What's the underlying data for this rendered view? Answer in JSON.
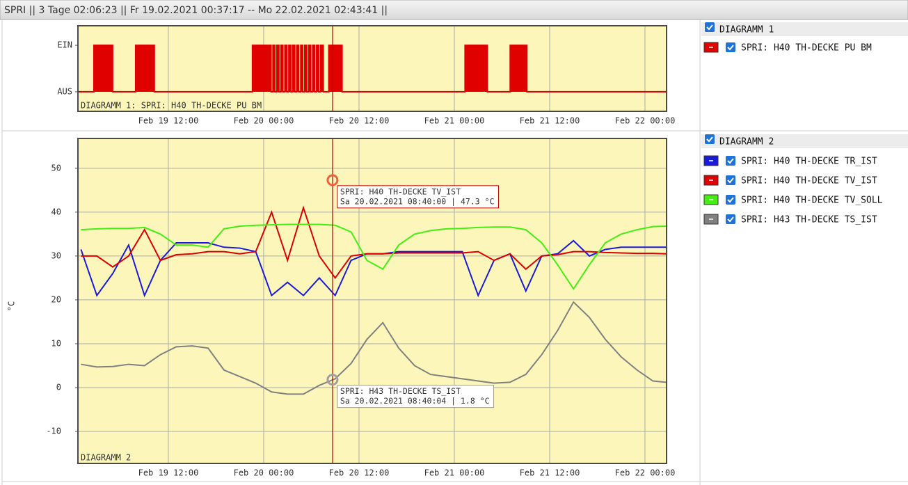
{
  "header": {
    "title": "SPRI || 3 Tage 02:06:23 || Fr 19.02.2021 00:37:17 -- Mo 22.02.2021 02:43:41 ||"
  },
  "chart_data": [
    {
      "type": "step",
      "legend_title": "DIAGRAMM 1",
      "label": "DIAGRAMM 1: SPRI: H40 TH-DECKE PU BM",
      "xlim": [
        "Feb 19 00:37",
        "Feb 22 02:43"
      ],
      "xticks": [
        "Feb 19 12:00",
        "Feb 20 00:00",
        "Feb 20 12:00",
        "Feb 21 00:00",
        "Feb 21 12:00",
        "Feb 22 00:00"
      ],
      "ylim": [
        -0.42,
        1.42
      ],
      "yticks": [
        {
          "value": 1,
          "label": "EIN"
        },
        {
          "value": 0,
          "label": "AUS"
        }
      ],
      "xgrid": true,
      "ygrid": false,
      "cursor": "Feb 20 08:40",
      "x": [
        "Feb 19 00:37",
        "Feb 19 02:38",
        "Feb 19 04:59",
        "Feb 19 07:53",
        "Feb 19 10:14",
        "Feb 19 22:35",
        "Feb 20 00:56",
        "Feb 20 01:10",
        "Feb 20 01:25",
        "Feb 20 01:40",
        "Feb 20 01:55",
        "Feb 20 02:10",
        "Feb 20 02:25",
        "Feb 20 02:40",
        "Feb 20 02:55",
        "Feb 20 03:10",
        "Feb 20 03:25",
        "Feb 20 03:40",
        "Feb 20 03:55",
        "Feb 20 04:10",
        "Feb 20 04:25",
        "Feb 20 04:40",
        "Feb 20 04:55",
        "Feb 20 05:10",
        "Feb 20 05:25",
        "Feb 20 05:40",
        "Feb 20 05:55",
        "Feb 20 06:10",
        "Feb 20 06:25",
        "Feb 20 06:40",
        "Feb 20 06:55",
        "Feb 20 07:10",
        "Feb 20 07:30",
        "Feb 20 08:12",
        "Feb 20 09:52",
        "Feb 21 01:21",
        "Feb 21 04:09",
        "Feb 21 07:02",
        "Feb 21 09:08",
        "Feb 22 02:43"
      ],
      "series": [
        {
          "name": "SPRI: H40 TH-DECKE PU BM",
          "color": "#e00000",
          "values": [
            0,
            1,
            0,
            1,
            0,
            1,
            0,
            1,
            0,
            1,
            0,
            1,
            0,
            1,
            0,
            1,
            0,
            1,
            0,
            1,
            0,
            1,
            0,
            1,
            0,
            1,
            0,
            1,
            0,
            1,
            0,
            1,
            0,
            1,
            0,
            1,
            0,
            1,
            0,
            0
          ]
        }
      ]
    },
    {
      "type": "line",
      "legend_title": "DIAGRAMM 2",
      "label": "DIAGRAMM 2",
      "ylabel": "°C",
      "xlim": [
        "Feb 19 00:37",
        "Feb 22 02:43"
      ],
      "xticks": [
        "Feb 19 12:00",
        "Feb 20 00:00",
        "Feb 20 12:00",
        "Feb 21 00:00",
        "Feb 21 12:00",
        "Feb 22 00:00"
      ],
      "ylim": [
        -17.3,
        56.8
      ],
      "yticks": [
        -10,
        0,
        10,
        20,
        30,
        40,
        50
      ],
      "xgrid": true,
      "ygrid": true,
      "cursor": "Feb 20 08:40",
      "x": [
        "Feb 19 01:00",
        "Feb 19 03:00",
        "Feb 19 05:00",
        "Feb 19 07:00",
        "Feb 19 09:00",
        "Feb 19 11:00",
        "Feb 19 13:00",
        "Feb 19 15:00",
        "Feb 19 17:00",
        "Feb 19 19:00",
        "Feb 19 21:00",
        "Feb 19 23:00",
        "Feb 20 01:00",
        "Feb 20 03:00",
        "Feb 20 05:00",
        "Feb 20 07:00",
        "Feb 20 09:00",
        "Feb 20 11:00",
        "Feb 20 13:00",
        "Feb 20 15:00",
        "Feb 20 17:00",
        "Feb 20 19:00",
        "Feb 20 21:00",
        "Feb 20 23:00",
        "Feb 21 01:00",
        "Feb 21 03:00",
        "Feb 21 05:00",
        "Feb 21 07:00",
        "Feb 21 09:00",
        "Feb 21 11:00",
        "Feb 21 13:00",
        "Feb 21 15:00",
        "Feb 21 17:00",
        "Feb 21 19:00",
        "Feb 21 21:00",
        "Feb 21 23:00",
        "Feb 22 01:00",
        "Feb 22 02:40"
      ],
      "series": [
        {
          "name": "SPRI: H40 TH-DECKE TR_IST",
          "color": "#1a1adc",
          "values": [
            31.5,
            21,
            26,
            32.5,
            21,
            29,
            33,
            33,
            33,
            32,
            31.8,
            31,
            21,
            24,
            21,
            25,
            21,
            29,
            30.5,
            30.5,
            31,
            31,
            31,
            31,
            31,
            21,
            29,
            30.5,
            22,
            30,
            30.5,
            33.5,
            30,
            31.5,
            32,
            32,
            32,
            32
          ]
        },
        {
          "name": "SPRI: H40 TH-DECKE TV_IST",
          "color": "#dd0000",
          "values": [
            30,
            30,
            27.5,
            30,
            36,
            29,
            30.3,
            30.5,
            31,
            31,
            30.5,
            31,
            40,
            29,
            41,
            30,
            25,
            30,
            30.5,
            30.5,
            30.7,
            30.7,
            30.7,
            30.7,
            30.7,
            31,
            29,
            30.5,
            27,
            30,
            30.3,
            31,
            31,
            30.8,
            30.7,
            30.6,
            30.6,
            30.5
          ]
        },
        {
          "name": "SPRI: H40 TH-DECKE TV_SOLL",
          "color": "#44ee11",
          "values": [
            36,
            36.2,
            36.3,
            36.3,
            36.5,
            35,
            32.5,
            32.5,
            32,
            36.2,
            36.8,
            37,
            37.1,
            37.2,
            37.2,
            37.2,
            37,
            35.5,
            29,
            27,
            32.5,
            35,
            35.8,
            36.2,
            36.3,
            36.5,
            36.6,
            36.6,
            36,
            33,
            28,
            22.5,
            28,
            33,
            35,
            36,
            36.7,
            36.8
          ]
        },
        {
          "name": "SPRI: H43 TH-DECKE TS_IST",
          "color": "#808080",
          "values": [
            5.3,
            4.7,
            4.8,
            5.3,
            5,
            7.5,
            9.3,
            9.5,
            9,
            4,
            2.5,
            1,
            -1,
            -1.5,
            -1.5,
            0.5,
            2,
            5.5,
            11,
            14.8,
            9,
            5,
            3,
            2.5,
            2,
            1.5,
            1,
            1.2,
            3,
            7.5,
            13,
            19.5,
            16,
            11,
            7,
            4,
            1.5,
            1.2
          ]
        }
      ],
      "tooltips": [
        {
          "title": "SPRI: H40 TH-DECKE TV_IST",
          "x": "Feb 20 08:40",
          "value": 47.3,
          "color": "#f06040",
          "text": "Sa 20.02.2021 08:40:00 | 47.3 °C"
        },
        {
          "title": "SPRI: H43 TH-DECKE TS_IST",
          "x": "Feb 20 08:40",
          "value": 1.8,
          "color": "#a0a0a0",
          "text": "Sa 20.02.2021 08:40:04 | 1.8 °C"
        }
      ]
    }
  ]
}
